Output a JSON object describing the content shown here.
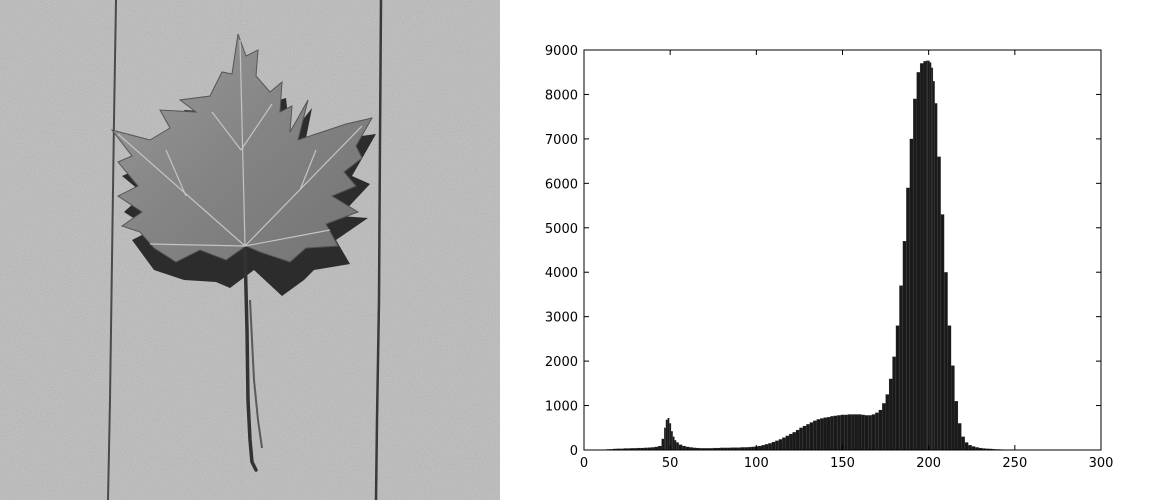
{
  "photo": {
    "icon": "maple-leaf-icon"
  },
  "chart_data": {
    "type": "bar",
    "title": "",
    "xlabel": "",
    "ylabel": "",
    "xlim": [
      0,
      300
    ],
    "ylim": [
      0,
      9000
    ],
    "xticks": [
      0,
      50,
      100,
      150,
      200,
      250,
      300
    ],
    "yticks": [
      0,
      1000,
      2000,
      3000,
      4000,
      5000,
      6000,
      7000,
      8000,
      9000
    ],
    "grid": false,
    "bar_color": "#1a1a1a",
    "x": [
      12,
      14,
      16,
      18,
      20,
      22,
      24,
      26,
      28,
      30,
      32,
      34,
      36,
      38,
      40,
      42,
      44,
      46,
      47,
      48,
      49,
      50,
      51,
      52,
      53,
      54,
      56,
      58,
      60,
      62,
      64,
      66,
      68,
      70,
      72,
      74,
      76,
      78,
      80,
      82,
      84,
      86,
      88,
      90,
      92,
      94,
      96,
      98,
      100,
      102,
      104,
      106,
      108,
      110,
      112,
      114,
      116,
      118,
      120,
      122,
      124,
      126,
      128,
      130,
      132,
      134,
      136,
      138,
      140,
      142,
      144,
      146,
      148,
      150,
      152,
      154,
      156,
      158,
      160,
      162,
      164,
      166,
      168,
      170,
      172,
      174,
      176,
      178,
      180,
      182,
      184,
      186,
      188,
      190,
      192,
      194,
      196,
      198,
      199,
      200,
      201,
      202,
      203,
      204,
      206,
      208,
      210,
      212,
      214,
      216,
      218,
      220,
      222,
      224,
      226,
      228,
      230,
      232,
      234,
      236,
      238,
      240,
      242,
      244,
      246,
      248,
      250
    ],
    "values": [
      10,
      15,
      20,
      25,
      30,
      30,
      35,
      35,
      40,
      40,
      45,
      45,
      50,
      55,
      60,
      70,
      90,
      250,
      500,
      680,
      720,
      600,
      420,
      300,
      220,
      170,
      120,
      90,
      70,
      60,
      50,
      45,
      40,
      40,
      40,
      40,
      45,
      45,
      50,
      50,
      50,
      55,
      55,
      55,
      60,
      60,
      65,
      70,
      80,
      90,
      110,
      130,
      150,
      180,
      210,
      240,
      280,
      320,
      360,
      400,
      450,
      500,
      540,
      580,
      620,
      660,
      690,
      710,
      730,
      740,
      760,
      770,
      780,
      790,
      790,
      800,
      800,
      800,
      800,
      790,
      780,
      780,
      800,
      840,
      900,
      1050,
      1250,
      1600,
      2100,
      2800,
      3700,
      4700,
      5900,
      7000,
      7900,
      8500,
      8700,
      8750,
      8760,
      8760,
      8720,
      8600,
      8300,
      7800,
      6600,
      5300,
      4000,
      2800,
      1900,
      1100,
      600,
      300,
      170,
      110,
      80,
      60,
      45,
      35,
      30,
      25,
      20,
      15,
      12,
      10,
      8,
      6,
      5
    ]
  }
}
